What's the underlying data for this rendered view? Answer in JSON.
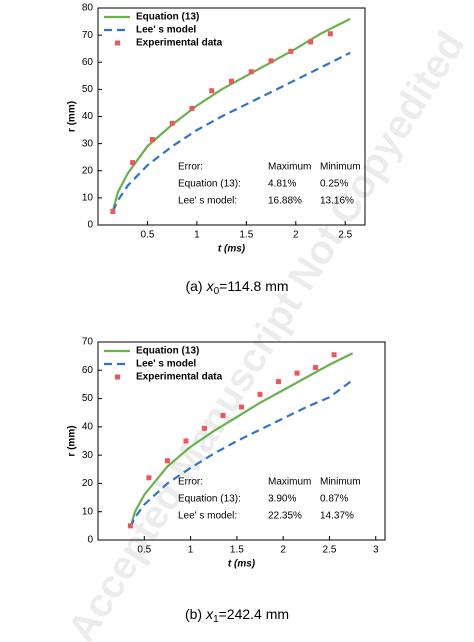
{
  "chart_data": [
    {
      "type": "line",
      "x_label": "t (ms)",
      "y_label": "r (mm)",
      "xlim": [
        0,
        2.7
      ],
      "xticks": [
        0.5,
        1.0,
        1.5,
        2.0,
        2.5
      ],
      "ylim": [
        0,
        80
      ],
      "yticks": [
        0,
        10,
        20,
        30,
        40,
        50,
        60,
        70,
        80
      ],
      "series": [
        {
          "name": "Equation (13)",
          "color": "#6ab04c",
          "style": "solid",
          "x": [
            0.15,
            0.2,
            0.3,
            0.5,
            0.75,
            1.0,
            1.25,
            1.5,
            1.75,
            2.0,
            2.25,
            2.55
          ],
          "values": [
            5,
            12,
            19,
            29,
            37,
            44,
            50,
            55,
            60,
            65,
            70.5,
            76
          ]
        },
        {
          "name": "Lee' s model",
          "color": "#2e75c9",
          "style": "dashed",
          "x": [
            0.15,
            0.2,
            0.3,
            0.5,
            0.75,
            1.0,
            1.25,
            1.5,
            1.75,
            2.0,
            2.25,
            2.55
          ],
          "values": [
            5,
            9,
            14.5,
            22,
            29,
            35,
            40,
            44.5,
            49,
            53.5,
            58,
            63.5
          ]
        },
        {
          "name": "Experimental data",
          "color": "#f0555a",
          "style": "markers",
          "x": [
            0.15,
            0.35,
            0.55,
            0.75,
            0.95,
            1.15,
            1.35,
            1.55,
            1.75,
            1.95,
            2.15,
            2.35
          ],
          "values": [
            5,
            23,
            31.5,
            37.5,
            43,
            49.5,
            53,
            56.5,
            60.5,
            64,
            67.5,
            70.5
          ]
        }
      ],
      "error_table": {
        "header": [
          "Error:",
          "Maximum",
          "Minimum"
        ],
        "rows": [
          [
            "Equation (13):",
            "4.81%",
            "0.25%"
          ],
          [
            "Lee' s model:",
            "16.88%",
            "13.16%"
          ]
        ]
      },
      "caption": {
        "label": "(a)",
        "variable": "x",
        "subscript": "0",
        "value": "=114.8 mm"
      }
    },
    {
      "type": "line",
      "x_label": "t (ms)",
      "y_label": "r (mm)",
      "xlim": [
        0,
        3.1
      ],
      "xticks": [
        0.5,
        1.0,
        1.5,
        2.0,
        2.5,
        3.0
      ],
      "ylim": [
        0,
        70
      ],
      "yticks": [
        0,
        10,
        20,
        30,
        40,
        50,
        60,
        70
      ],
      "series": [
        {
          "name": "Equation (13)",
          "color": "#6ab04c",
          "style": "solid",
          "x": [
            0.35,
            0.4,
            0.5,
            0.75,
            1.0,
            1.25,
            1.5,
            1.75,
            2.0,
            2.25,
            2.5,
            2.75
          ],
          "values": [
            4.5,
            10,
            16,
            26,
            33,
            38.5,
            43.5,
            48.5,
            53,
            57.5,
            62,
            66
          ]
        },
        {
          "name": "Lee' s model",
          "color": "#2e75c9",
          "style": "dashed",
          "x": [
            0.35,
            0.4,
            0.5,
            0.75,
            1.0,
            1.25,
            1.5,
            1.75,
            2.0,
            2.25,
            2.5,
            2.75
          ],
          "values": [
            4.5,
            8,
            12.5,
            20,
            25.5,
            30.5,
            35,
            39,
            43,
            47,
            50.5,
            56.5
          ]
        },
        {
          "name": "Experimental data",
          "color": "#f0555a",
          "style": "markers",
          "x": [
            0.35,
            0.55,
            0.75,
            0.95,
            1.15,
            1.35,
            1.55,
            1.75,
            1.95,
            2.15,
            2.35,
            2.55
          ],
          "values": [
            5,
            22,
            28,
            35,
            39.5,
            44,
            47,
            51.5,
            56,
            59,
            61,
            65.5
          ]
        }
      ],
      "error_table": {
        "header": [
          "Error:",
          "Maximum",
          "Minimum"
        ],
        "rows": [
          [
            "Equation (13):",
            "3.90%",
            "0.87%"
          ],
          [
            "Lee' s model:",
            "22.35%",
            "14.37%"
          ]
        ]
      },
      "caption": {
        "label": "(b)",
        "variable": "x",
        "subscript": "1",
        "value": "=242.4 mm"
      }
    }
  ],
  "watermark": "Accepted Manuscript Not Copyedited"
}
